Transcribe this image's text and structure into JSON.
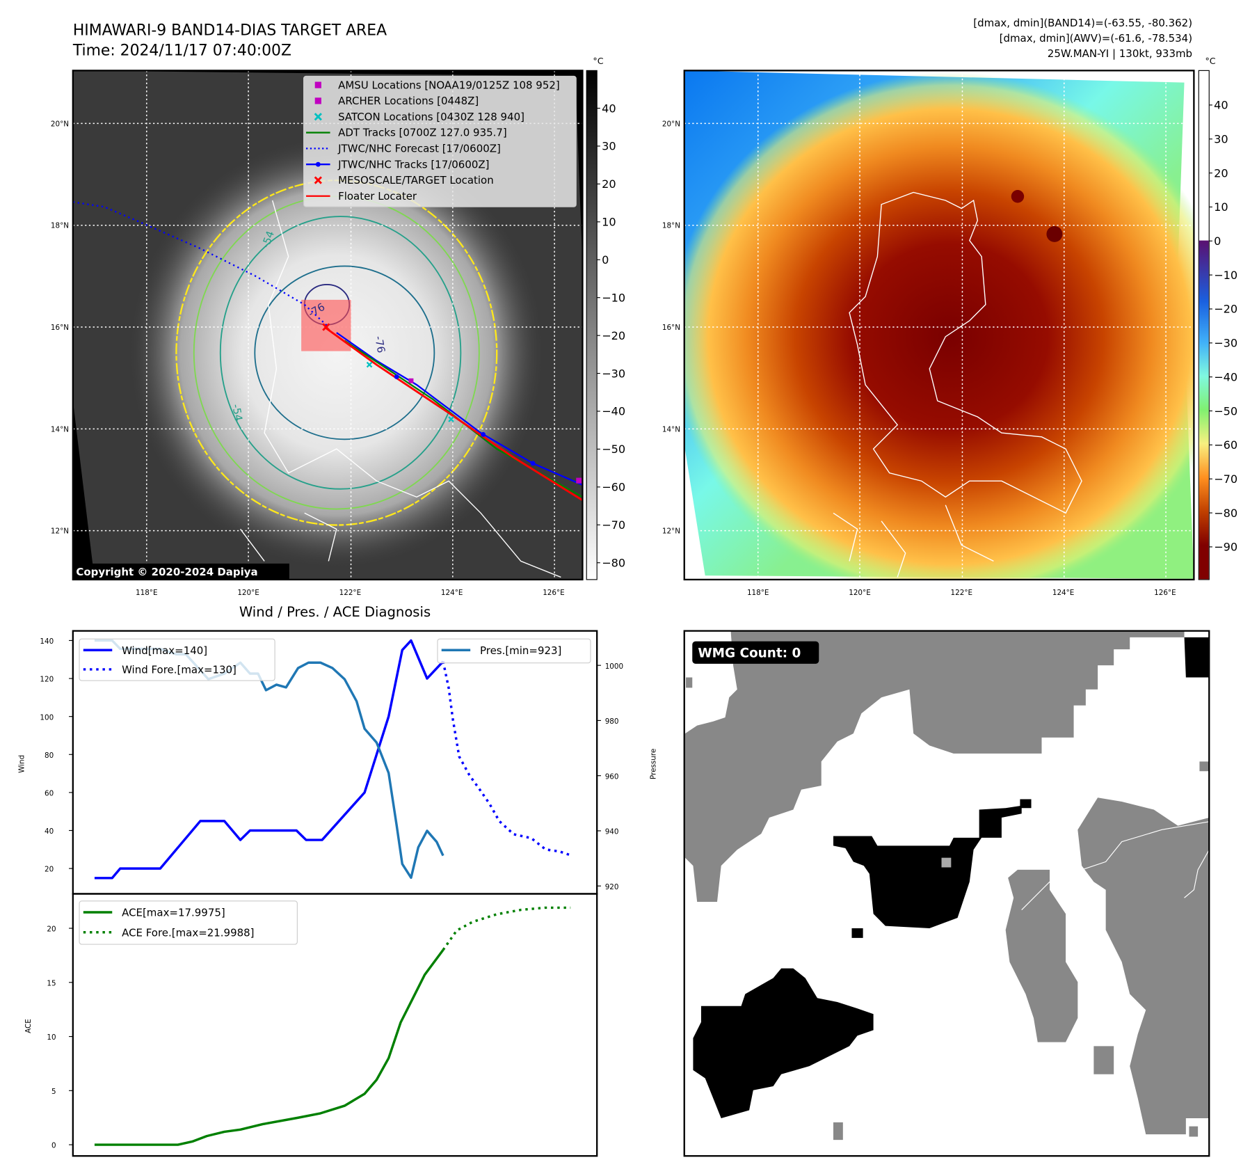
{
  "header": {
    "title_line1": "HIMAWARI-9 BAND14-DIAS TARGET AREA",
    "title_line2": "Time: 2024/11/17 07:40:00Z",
    "info_line1": "[dmax, dmin](BAND14)=(-63.55, -80.362)",
    "info_line2": "[dmax, dmin](AWV)=(-61.6, -78.534)",
    "info_line3": "25W.MAN-YI | 130kt, 933mb"
  },
  "maps": {
    "lat_ticks": [
      20,
      18,
      16,
      14,
      12
    ],
    "lat_labels": [
      "20°N",
      "18°N",
      "16°N",
      "14°N",
      "12°N"
    ],
    "lon_ticks": [
      118,
      120,
      122,
      124,
      126
    ],
    "lon_labels": [
      "118°E",
      "120°E",
      "122°E",
      "124°E",
      "126°E"
    ],
    "colorbar_unit": "°C",
    "left_colorbar_ticks": [
      "40",
      "30",
      "20",
      "10",
      "0",
      "−10",
      "−20",
      "−30",
      "−40",
      "−50",
      "−60",
      "−70",
      "−80"
    ],
    "left_colorbar_values": [
      40,
      30,
      20,
      10,
      0,
      -10,
      -20,
      -30,
      -40,
      -50,
      -60,
      -70,
      -80
    ],
    "right_colorbar_ticks": [
      "40",
      "30",
      "20",
      "10",
      "0",
      "−10",
      "−20",
      "−30",
      "−40",
      "−50",
      "−60",
      "−70",
      "−80",
      "−90"
    ],
    "right_colorbar_values": [
      40,
      30,
      20,
      10,
      0,
      -10,
      -20,
      -30,
      -40,
      -50,
      -60,
      -70,
      -80,
      -90
    ],
    "contour_labels": [
      "-54",
      "-76",
      "-76",
      "-54"
    ],
    "copyright": "Copyright © 2020-2024 Dapiya",
    "legend": [
      {
        "label": "AMSU Locations [NOAA19/0125Z 108 952]",
        "marker": "square",
        "color": "#c000c0"
      },
      {
        "label": "ARCHER Locations [0448Z]",
        "marker": "square",
        "color": "#c000c0"
      },
      {
        "label": "SATCON Locations [0430Z 128 940]",
        "marker": "x",
        "color": "#00c0c0"
      },
      {
        "label": "ADT Tracks [0700Z 127.0 935.7]",
        "marker": "line",
        "color": "#008000"
      },
      {
        "label": "JTWC/NHC Forecast [17/0600Z]",
        "marker": "dotted",
        "color": "#0000ff"
      },
      {
        "label": "JTWC/NHC Tracks [17/0600Z]",
        "marker": "line-dot",
        "color": "#0000ff"
      },
      {
        "label": "MESOSCALE/TARGET Location",
        "marker": "x",
        "color": "#ff0000"
      },
      {
        "label": "Floater Locater",
        "marker": "line",
        "color": "#ff0000"
      }
    ]
  },
  "wmg": {
    "label": "WMG Count: 0"
  },
  "chart_data": [
    {
      "type": "line",
      "title": "Wind / Pres. / ACE Diagnosis",
      "ylabel": "Wind",
      "y2label": "Pressure",
      "ylim": [
        10,
        146
      ],
      "y2lim": [
        918,
        1012
      ],
      "yticks": [
        20,
        40,
        60,
        80,
        100,
        120,
        140
      ],
      "y2ticks": [
        920,
        940,
        960,
        980,
        1000
      ],
      "series": [
        {
          "name": "Wind[max=140]",
          "axis": "left",
          "style": "solid",
          "color": "#0000ff",
          "x": [
            0,
            2.2,
            3.2,
            8.2,
            13.2,
            16.2,
            18.2,
            19.4,
            25.2,
            26.4,
            28.4,
            33.7,
            36.7,
            38.4,
            39.5,
            41.5,
            43.5
          ],
          "values": [
            15,
            15,
            20,
            20,
            45,
            45,
            35,
            40,
            40,
            35,
            35,
            60,
            100,
            135,
            140,
            120,
            129
          ]
        },
        {
          "name": "Wind Fore.[max=130]",
          "axis": "left",
          "style": "dotted",
          "color": "#0000ff",
          "x": [
            43.5,
            44.2,
            44.7,
            45.5,
            46.8,
            48,
            49.3,
            50.5,
            52.3,
            54.5,
            56.3,
            58,
            59.4
          ],
          "values": [
            129,
            115,
            99,
            79,
            69,
            62,
            54,
            45,
            38,
            36,
            30,
            29,
            27
          ]
        },
        {
          "name": "Pres.[min=923]",
          "axis": "right",
          "style": "solid",
          "color": "#1f77b4",
          "x": [
            0,
            2.2,
            3.2,
            4.4,
            8.2,
            10.2,
            11.4,
            14.2,
            16.2,
            18.2,
            19.4,
            20.4,
            21.4,
            22.7,
            23.9,
            25.4,
            26.7,
            28.2,
            29.7,
            31.2,
            32.7,
            33.7,
            35.2,
            36.7,
            37.7,
            38.4,
            39.5,
            40.4,
            41.5,
            42.7,
            43.5
          ],
          "values": [
            1009,
            1009,
            1006,
            1006,
            1006,
            1004,
            1004,
            995,
            997,
            1001,
            997,
            997,
            991,
            993,
            992,
            999,
            1001,
            1001,
            999,
            995,
            987,
            977,
            972,
            961,
            942,
            928,
            923,
            934,
            940,
            936,
            931
          ]
        },
        {
          "name": "ACE[max=17.9975]",
          "axis": "ace",
          "style": "solid",
          "color": "#008000",
          "x": [
            0,
            10.4,
            12.2,
            14,
            16.2,
            18.2,
            21,
            25.4,
            28.2,
            31.2,
            33.7,
            35.2,
            36.7,
            38.2,
            39.7,
            41.2,
            43.5
          ],
          "values": [
            0,
            0,
            0.3,
            0.8,
            1.2,
            1.4,
            1.9,
            2.5,
            2.9,
            3.6,
            4.7,
            6,
            8,
            11.3,
            13.5,
            15.7,
            18
          ]
        },
        {
          "name": "ACE Fore.[max=21.9988]",
          "axis": "ace",
          "style": "dotted",
          "color": "#008000",
          "x": [
            43.5,
            45.2,
            47.2,
            50.2,
            53.2,
            56.2,
            59.4
          ],
          "values": [
            18,
            19.8,
            20.6,
            21.3,
            21.7,
            21.9,
            21.9
          ]
        }
      ],
      "ace_ylabel": "ACE",
      "ace_ylim": [
        -1,
        23
      ],
      "ace_yticks": [
        0,
        5,
        10,
        15,
        20
      ]
    }
  ]
}
